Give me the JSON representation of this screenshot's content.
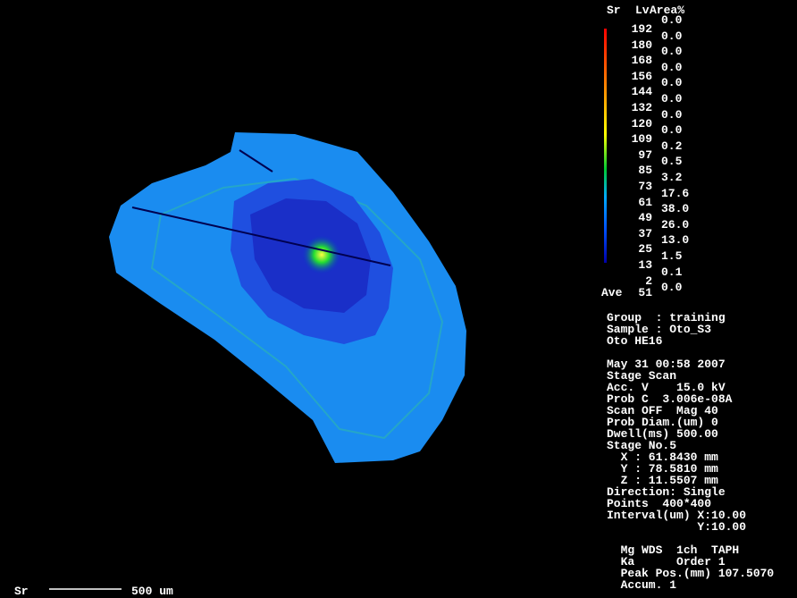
{
  "legend": {
    "element": "Sr",
    "level_header": "Lv",
    "area_header": "Area%",
    "levels": [
      "192",
      "180",
      "168",
      "156",
      "144",
      "132",
      "120",
      "109",
      "97",
      "85",
      "73",
      "61",
      "49",
      "37",
      "25",
      "13",
      "2"
    ],
    "areas": [
      "0.0",
      "0.0",
      "0.0",
      "0.0",
      "0.0",
      "0.0",
      "0.0",
      "0.0",
      "0.2",
      "0.5",
      "3.2",
      "17.6",
      "38.0",
      "26.0",
      "13.0",
      "1.5",
      "0.1",
      "0.0"
    ],
    "average_label": "Ave",
    "average": "51"
  },
  "info": {
    "sample_block": [
      "Group  : training",
      "Sample : Oto_S3",
      "Oto HE16"
    ],
    "scan_block": [
      "May 31 00:58 2007",
      "Stage Scan",
      "Acc. V    15.0 kV",
      "Prob C  3.006e-08A",
      "Scan OFF  Mag 40",
      "Prob Diam.(um) 0",
      "Dwell(ms) 500.00",
      "Stage No.5",
      "  X : 61.8430 mm",
      "  Y : 78.5810 mm",
      "  Z : 11.5507 mm",
      "Direction: Single",
      "Points  400*400",
      "Interval(um) X:10.00",
      "             Y:10.00"
    ],
    "spectrometer_block": [
      "  Mg WDS  1ch  TAPH",
      "  Ka      Order 1",
      "  Peak Pos.(mm) 107.5070",
      "  Accum. 1"
    ]
  },
  "scale_bar": {
    "element": "Sr",
    "length": "500 um"
  }
}
